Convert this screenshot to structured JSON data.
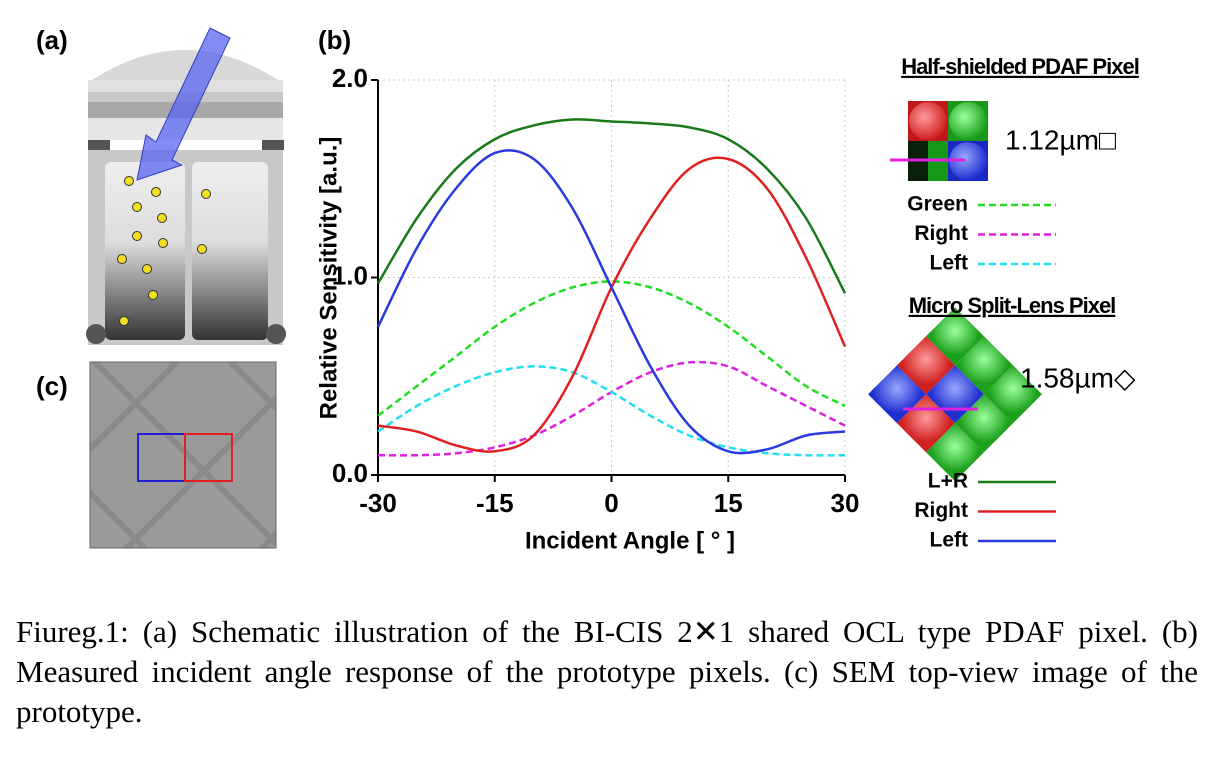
{
  "panel_labels": [
    "(a)",
    "(b)",
    "(c)"
  ],
  "chart_data": {
    "type": "line",
    "xlabel": "Incident Angle [ ° ]",
    "ylabel": "Relative Sensitivity [a.u.]",
    "x": [
      -30,
      -25,
      -20,
      -15,
      -10,
      -5,
      0,
      5,
      10,
      15,
      20,
      25,
      30
    ],
    "xlim": [
      -30,
      30
    ],
    "xticks": [
      -30,
      -15,
      0,
      15,
      30
    ],
    "ylim": [
      0,
      2
    ],
    "yticks": [
      {
        "value": 0,
        "label": "0.0"
      },
      {
        "value": 1,
        "label": "1.0"
      },
      {
        "value": 2,
        "label": "2.0"
      }
    ],
    "grid": true,
    "legends": [
      {
        "title": "Half-shielded PDAF Pixel",
        "pixel_size": "1.12µm□",
        "style": "dashed"
      },
      {
        "title": "Micro Split-Lens Pixel",
        "pixel_size": "1.58µm◇",
        "style": "solid"
      }
    ],
    "series": [
      {
        "name": "Green",
        "color": "#22dd22",
        "style": "dashed",
        "values": [
          0.3,
          0.45,
          0.6,
          0.75,
          0.87,
          0.95,
          0.98,
          0.95,
          0.87,
          0.75,
          0.6,
          0.45,
          0.35
        ]
      },
      {
        "name": "Right",
        "color": "#e020e0",
        "style": "dashed",
        "values": [
          0.1,
          0.1,
          0.11,
          0.14,
          0.2,
          0.3,
          0.42,
          0.52,
          0.57,
          0.55,
          0.45,
          0.35,
          0.25
        ]
      },
      {
        "name": "Left",
        "color": "#22e0f0",
        "style": "dashed",
        "values": [
          0.22,
          0.35,
          0.45,
          0.52,
          0.55,
          0.52,
          0.42,
          0.3,
          0.2,
          0.14,
          0.11,
          0.1,
          0.1
        ]
      },
      {
        "name": "L+R",
        "color": "#1a7a1a",
        "style": "solid",
        "values": [
          0.97,
          1.3,
          1.55,
          1.7,
          1.77,
          1.8,
          1.79,
          1.78,
          1.76,
          1.7,
          1.55,
          1.3,
          0.92
        ]
      },
      {
        "name": "Right",
        "color": "#e02020",
        "style": "solid",
        "values": [
          0.25,
          0.22,
          0.15,
          0.12,
          0.2,
          0.5,
          0.95,
          1.3,
          1.55,
          1.6,
          1.45,
          1.1,
          0.65
        ]
      },
      {
        "name": "Left",
        "color": "#2a3ae0",
        "style": "solid",
        "values": [
          0.75,
          1.15,
          1.45,
          1.63,
          1.6,
          1.35,
          0.95,
          0.55,
          0.25,
          0.12,
          0.13,
          0.2,
          0.22
        ]
      }
    ]
  },
  "caption": "Fiureg.1: (a) Schematic illustration of the BI-CIS 2✕1 shared OCL type PDAF pixel.  (b) Measured incident angle response of the prototype pixels. (c) SEM top-view image of the prototype."
}
